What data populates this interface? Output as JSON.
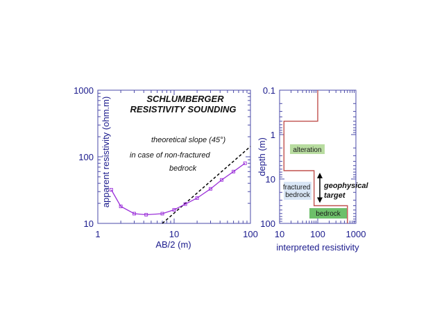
{
  "chart_data": [
    {
      "type": "line",
      "xscale": "log",
      "yscale": "log",
      "xlim": [
        1,
        100
      ],
      "ylim": [
        10,
        1000
      ],
      "xlabel": "AB/2 (m)",
      "ylabel": "apparent resistivity (ohm.m)",
      "title": [
        "SCHLUMBERGER",
        "RESISTIVITY SOUNDING"
      ],
      "x_ticks": [
        {
          "value": 1,
          "label": "1"
        },
        {
          "value": 10,
          "label": "10"
        },
        {
          "value": 100,
          "label": "100"
        }
      ],
      "y_ticks": [
        {
          "value": 10,
          "label": "10"
        },
        {
          "value": 100,
          "label": "100"
        },
        {
          "value": 1000,
          "label": "1000"
        }
      ],
      "series": [
        {
          "kind": "measured",
          "color": "#9b30d9",
          "x": [
            1.5,
            2,
            3,
            4.3,
            7,
            10,
            14,
            20,
            30,
            42,
            60,
            85
          ],
          "y": [
            32,
            18,
            14,
            13.5,
            14,
            16,
            19.5,
            24,
            33,
            45,
            60,
            80
          ]
        },
        {
          "kind": "theoretical-slope",
          "color": "#000000",
          "dash": true,
          "x": [
            7,
            100
          ],
          "y": [
            10,
            143
          ]
        }
      ],
      "annotations": [
        "theoretical  slope (45°)",
        "in case of non-fractured",
        "bedrock"
      ]
    },
    {
      "type": "line",
      "xscale": "log",
      "yscale": "log",
      "y_inverted": true,
      "xlim": [
        10,
        1000
      ],
      "ylim": [
        0.1,
        100
      ],
      "xlabel": "interpreted resistivity",
      "ylabel": "depth (m)",
      "x_ticks": [
        {
          "value": 10,
          "label": "10"
        },
        {
          "value": 100,
          "label": "100"
        },
        {
          "value": 1000,
          "label": "1000"
        }
      ],
      "y_ticks": [
        {
          "value": 0.1,
          "label": "0.1"
        },
        {
          "value": 1,
          "label": "1"
        },
        {
          "value": 10,
          "label": "10"
        },
        {
          "value": 100,
          "label": "100"
        }
      ],
      "series": [
        {
          "kind": "interpreted-model",
          "color": "#c0504d",
          "steps": [
            {
              "resistivity": 100,
              "top": 0.08,
              "bottom": 0.5
            },
            {
              "resistivity": 13,
              "top": 0.5,
              "bottom": 6.5
            },
            {
              "resistivity": 80,
              "top": 6.5,
              "bottom": 40
            },
            {
              "resistivity": 600,
              "top": 40,
              "bottom": 100
            }
          ]
        }
      ],
      "labels": [
        {
          "text": "alteration",
          "fill": "#b8dca0"
        },
        {
          "text": "fractured\nbedrock",
          "fill": "#d9e6f5"
        },
        {
          "text": "bedrock",
          "fill": "#6dbf6a"
        }
      ],
      "target": [
        "geophysical",
        "target"
      ],
      "target_depths": [
        6.5,
        40
      ]
    }
  ]
}
